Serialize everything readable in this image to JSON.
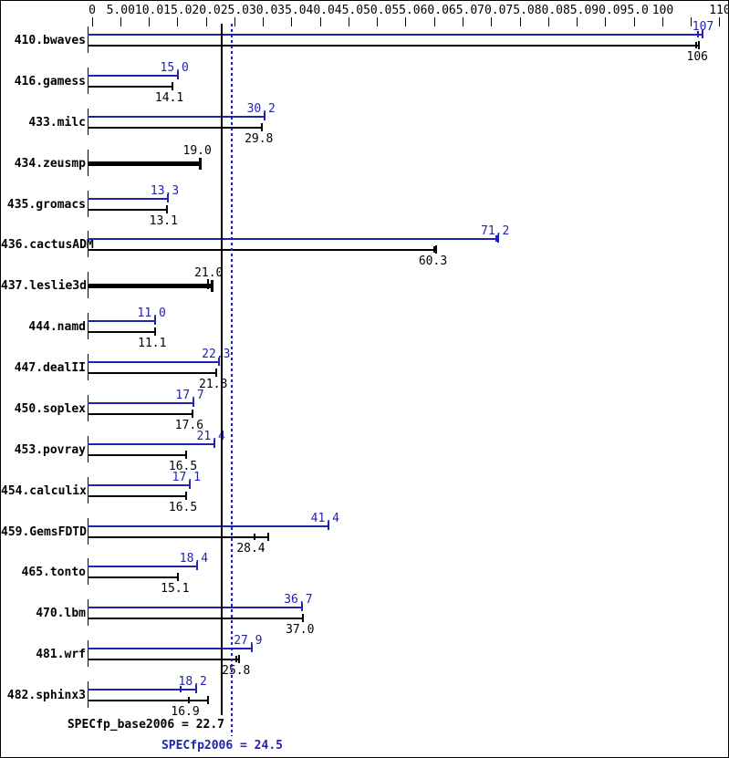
{
  "chart_data": {
    "type": "bar",
    "orientation": "horizontal",
    "description": "SPECfp2006 benchmark result chart: per-benchmark peak (blue) and base (black) ratio bars",
    "colors": {
      "peak": "#2222b2",
      "base": "#000000",
      "background": "#ffffff"
    },
    "axis": {
      "min": 0,
      "max": 110,
      "tick_step": 5,
      "position": "top",
      "tick_label_values": [
        0,
        5,
        10,
        15,
        20,
        25,
        30,
        35,
        40,
        45,
        50,
        55,
        60,
        65,
        70,
        75,
        80,
        85,
        90,
        95,
        100,
        110
      ],
      "tick_labels": [
        "0",
        "5.00",
        "10.0",
        "15.0",
        "20.0",
        "25.0",
        "30.0",
        "35.0",
        "40.0",
        "45.0",
        "50.0",
        "55.0",
        "60.0",
        "65.0",
        "70.0",
        "75.0",
        "80.0",
        "85.0",
        "90.0",
        "95.0",
        "100",
        "110"
      ]
    },
    "reference_lines": [
      {
        "name": "SPECfp_base2006",
        "value": 22.7,
        "style": "solid",
        "color": "#000000"
      },
      {
        "name": "SPECfp2006",
        "value": 24.5,
        "style": "dotted",
        "color": "#2222b2"
      }
    ],
    "summary": {
      "base_label": "SPECfp_base2006 = 22.7",
      "peak_label": "SPECfp2006 = 24.5",
      "base_value": 22.7,
      "peak_value": 24.5
    },
    "benchmarks": [
      {
        "name": "410.bwaves",
        "peak": {
          "label": "107",
          "value": 107,
          "end": 107,
          "ticks": [
            106.2
          ]
        },
        "base": {
          "label": "106",
          "value": 106,
          "end": 106.4,
          "ticks": [
            105.8
          ]
        }
      },
      {
        "name": "416.gamess",
        "peak": {
          "label": "15.0",
          "value": 15.0
        },
        "base": {
          "label": "14.1",
          "value": 14.1
        }
      },
      {
        "name": "433.milc",
        "peak": {
          "label": "30.2",
          "value": 30.2
        },
        "base": {
          "label": "29.8",
          "value": 29.8
        }
      },
      {
        "name": "434.zeusmp",
        "single": {
          "label": "19.0",
          "value": 19.0
        }
      },
      {
        "name": "435.gromacs",
        "peak": {
          "label": "13.3",
          "value": 13.3
        },
        "base": {
          "label": "13.1",
          "value": 13.1
        }
      },
      {
        "name": "436.cactusADM",
        "peak": {
          "label": "71.2",
          "value": 71.2,
          "ticks": [
            70.8
          ]
        },
        "base": {
          "label": "60.3",
          "value": 60.3,
          "ticks": [
            59.9
          ]
        }
      },
      {
        "name": "437.leslie3d",
        "single": {
          "label": "21.0",
          "value": 21.0,
          "ticks": [
            20.3
          ]
        }
      },
      {
        "name": "444.namd",
        "peak": {
          "label": "11.0",
          "value": 11.0
        },
        "base": {
          "label": "11.1",
          "value": 11.1
        }
      },
      {
        "name": "447.dealII",
        "peak": {
          "label": "22.3",
          "value": 22.3
        },
        "base": {
          "label": "21.8",
          "value": 21.8
        }
      },
      {
        "name": "450.soplex",
        "peak": {
          "label": "17.7",
          "value": 17.7
        },
        "base": {
          "label": "17.6",
          "value": 17.6
        }
      },
      {
        "name": "453.povray",
        "peak": {
          "label": "21.4",
          "value": 21.4
        },
        "base": {
          "label": "16.5",
          "value": 16.5
        }
      },
      {
        "name": "454.calculix",
        "peak": {
          "label": "17.1",
          "value": 17.1
        },
        "base": {
          "label": "16.5",
          "value": 16.5
        }
      },
      {
        "name": "459.GemsFDTD",
        "peak": {
          "label": "41.4",
          "value": 41.4
        },
        "base": {
          "label": "28.4",
          "value": 28.4,
          "end": 30.9,
          "ticks": [
            28.4
          ]
        }
      },
      {
        "name": "465.tonto",
        "peak": {
          "label": "18.4",
          "value": 18.4
        },
        "base": {
          "label": "15.1",
          "value": 15.1
        }
      },
      {
        "name": "470.lbm",
        "peak": {
          "label": "36.7",
          "value": 36.7
        },
        "base": {
          "label": "37.0",
          "value": 37.0
        }
      },
      {
        "name": "481.wrf",
        "peak": {
          "label": "27.9",
          "value": 27.9
        },
        "base": {
          "label": "25.8",
          "value": 25.8,
          "ticks": [
            25.3
          ]
        }
      },
      {
        "name": "482.sphinx3",
        "peak": {
          "label": "18.2",
          "value": 18.2,
          "ticks": [
            15.5
          ]
        },
        "base": {
          "label": "16.9",
          "value": 16.9,
          "end": 20.3,
          "ticks": [
            16.9
          ]
        }
      }
    ]
  }
}
